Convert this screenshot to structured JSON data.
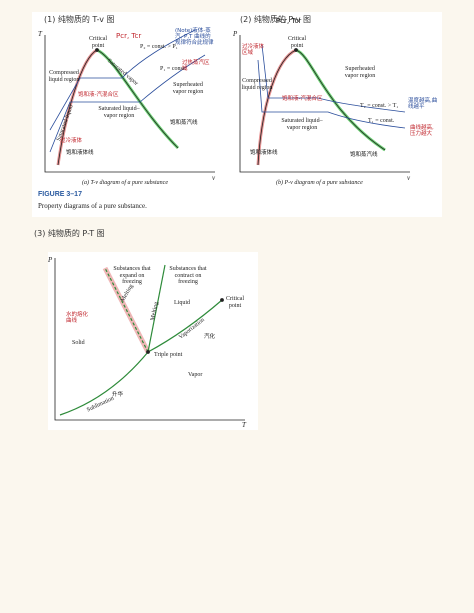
{
  "headings": [
    "(1) 纯物质的 T-v 图",
    "(2) 纯物质的 P-v 图",
    "(3) 纯物质的 P-T 图"
  ],
  "figure": {
    "label": "FIGURE 3–17",
    "caption": "Property diagrams of a pure substance."
  },
  "tv": {
    "y_axis": "T",
    "x_axis": "v",
    "critical_point": "Critical point",
    "note_critical": "Pcr, Tcr",
    "compressed": "Compressed liquid region",
    "superheated": "Superheated vapor region",
    "two_phase": "Saturated liquid–vapor region",
    "sat_liquid": "Saturated liquid",
    "sat_vapor": "Saturated vapor",
    "p2": "P₂ = const. > P₁",
    "p1": "P₁ = const.",
    "caption": "(a) T-v diagram of a pure substance",
    "notes": [
      "(Note)液体-蒸汽, P,T 曲线的规律符合此规律",
      "过热蒸汽区域",
      "饱和液-汽混合区",
      "过冷液体",
      "饱和蒸汽线",
      "饱和液体线"
    ]
  },
  "pv": {
    "y_axis": "P",
    "x_axis": "v",
    "critical_point": "Critical point",
    "note_critical": "Pcr, Tcr",
    "compressed": "Compressed liquid region",
    "superheated": "Superheated vapor region",
    "two_phase": "Saturated liquid–vapor region",
    "t2": "T₂ = const. > T₁",
    "t1": "T₁ = const.",
    "caption": "(b) P-v diagram of a pure substance",
    "notes": [
      "过冷液体区域",
      "温度越高,曲线越平",
      "曲线越高,压力越大",
      "饱和液-汽混合区",
      "饱和蒸汽线",
      "饱和液体线"
    ]
  },
  "pt": {
    "y_axis": "P",
    "x_axis": "T",
    "expand": "Substances that expand on freezing",
    "contract": "Substances that contract on freezing",
    "liquid": "Liquid",
    "critical_point": "Critical point",
    "solid": "Solid",
    "vapor": "Vapor",
    "triple_point": "Triple point",
    "melting_expand": "Melting",
    "melting_contract": "Melting",
    "vaporization": "Vaporization",
    "sublimation": "Sublimation",
    "notes": [
      "水的熔化曲线",
      "汽化",
      "升华"
    ]
  }
}
